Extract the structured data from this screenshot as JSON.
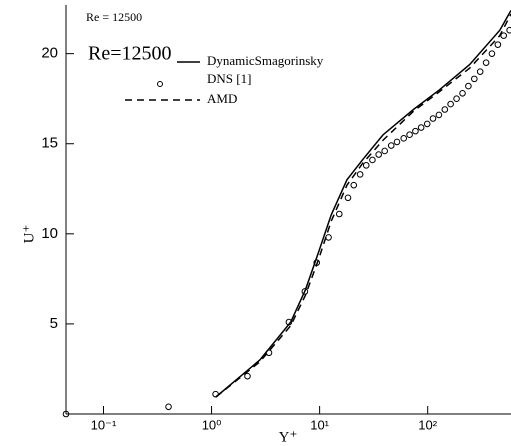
{
  "chart_data": {
    "type": "line",
    "annotations": [
      "Re = 12500",
      "Re=12500"
    ],
    "x_label": "Y⁺",
    "y_label": "U⁺",
    "log_x": true,
    "xlim": [
      0.045,
      590
    ],
    "ylim": [
      0,
      22.7
    ],
    "xticks": [
      {
        "value": 0.1,
        "label": "10⁻¹"
      },
      {
        "value": 1,
        "label": "10⁰"
      },
      {
        "value": 10,
        "label": "10¹"
      },
      {
        "value": 100,
        "label": "10²"
      }
    ],
    "yticks": [
      5,
      10,
      15,
      20
    ],
    "series": [
      {
        "name": "DynamicSmagorinsky",
        "color": "#000000",
        "style": "solid",
        "x": [
          1.1,
          2.8,
          5.4,
          7.4,
          9.8,
          12.8,
          17.9,
          24.9,
          38.7,
          73.8,
          129,
          245,
          465,
          590
        ],
        "values": [
          0.95,
          3.0,
          5.1,
          6.9,
          9.0,
          11.05,
          13.0,
          14.1,
          15.5,
          16.9,
          18.0,
          19.4,
          21.3,
          22.4
        ]
      },
      {
        "name": "DNS [1]",
        "color": "#000000",
        "style": "marker",
        "x": [
          0.045,
          0.4,
          1.09,
          2.15,
          3.4,
          5.2,
          7.3,
          9.4,
          12.1,
          15.2,
          18.3,
          20.7,
          23.7,
          27,
          30.8,
          35.2,
          40,
          46,
          52,
          60,
          68,
          77,
          87,
          99,
          112,
          127,
          144,
          163,
          185,
          210,
          238,
          270,
          306,
          347,
          393,
          446,
          505,
          573
        ],
        "values": [
          0,
          0.4,
          1.1,
          2.1,
          3.4,
          5.1,
          6.8,
          8.4,
          9.8,
          11.1,
          12.0,
          12.7,
          13.3,
          13.8,
          14.1,
          14.4,
          14.6,
          14.9,
          15.1,
          15.3,
          15.5,
          15.7,
          15.9,
          16.1,
          16.4,
          16.6,
          16.9,
          17.2,
          17.5,
          17.8,
          18.2,
          18.6,
          19.0,
          19.5,
          20.0,
          20.5,
          21.0,
          21.3
        ]
      },
      {
        "name": "AMD",
        "color": "#000000",
        "style": "dashed",
        "x": [
          1.1,
          2.8,
          5.4,
          7.4,
          9.8,
          12.8,
          17.9,
          24.9,
          38.7,
          73.8,
          129,
          245,
          465,
          590
        ],
        "values": [
          0.95,
          2.9,
          4.9,
          6.6,
          8.6,
          10.7,
          12.7,
          13.9,
          15.2,
          16.8,
          17.9,
          19.2,
          21.0,
          22.2
        ]
      }
    ]
  }
}
